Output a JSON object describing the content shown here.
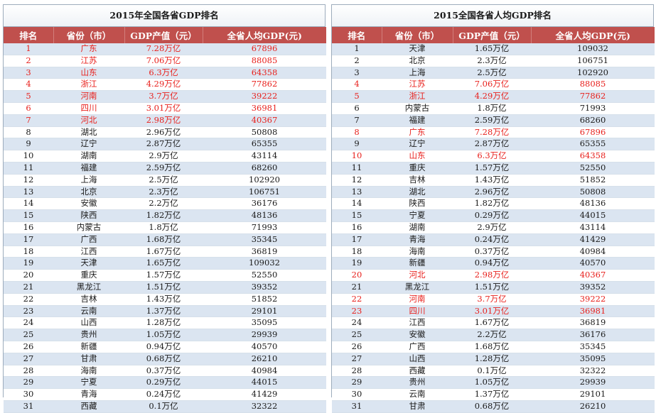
{
  "left": {
    "title": "2015年全国各省GDP排名",
    "headers": [
      "排名",
      "省份（市）",
      "GDP产值（元）",
      "全省人均GDP(元)"
    ],
    "rows": [
      {
        "rank": "1",
        "province": "广东",
        "gdp": "7.28万亿",
        "per_capita": "67896",
        "highlight": true
      },
      {
        "rank": "2",
        "province": "江苏",
        "gdp": "7.06万亿",
        "per_capita": "88085",
        "highlight": true
      },
      {
        "rank": "3",
        "province": "山东",
        "gdp": "6.3万亿",
        "per_capita": "64358",
        "highlight": true
      },
      {
        "rank": "4",
        "province": "浙江",
        "gdp": "4.29万亿",
        "per_capita": "77862",
        "highlight": true
      },
      {
        "rank": "5",
        "province": "河南",
        "gdp": "3.7万亿",
        "per_capita": "39222",
        "highlight": true
      },
      {
        "rank": "6",
        "province": "四川",
        "gdp": "3.01万亿",
        "per_capita": "36981",
        "highlight": true
      },
      {
        "rank": "7",
        "province": "河北",
        "gdp": "2.98万亿",
        "per_capita": "40367",
        "highlight": true
      },
      {
        "rank": "8",
        "province": "湖北",
        "gdp": "2.96万亿",
        "per_capita": "50808",
        "highlight": false
      },
      {
        "rank": "9",
        "province": "辽宁",
        "gdp": "2.87万亿",
        "per_capita": "65355",
        "highlight": false
      },
      {
        "rank": "10",
        "province": "湖南",
        "gdp": "2.9万亿",
        "per_capita": "43114",
        "highlight": false
      },
      {
        "rank": "11",
        "province": "福建",
        "gdp": "2.59万亿",
        "per_capita": "68260",
        "highlight": false
      },
      {
        "rank": "12",
        "province": "上海",
        "gdp": "2.5万亿",
        "per_capita": "102920",
        "highlight": false
      },
      {
        "rank": "13",
        "province": "北京",
        "gdp": "2.3万亿",
        "per_capita": "106751",
        "highlight": false
      },
      {
        "rank": "14",
        "province": "安徽",
        "gdp": "2.2万亿",
        "per_capita": "36176",
        "highlight": false
      },
      {
        "rank": "15",
        "province": "陕西",
        "gdp": "1.82万亿",
        "per_capita": "48136",
        "highlight": false
      },
      {
        "rank": "16",
        "province": "内蒙古",
        "gdp": "1.8万亿",
        "per_capita": "71993",
        "highlight": false
      },
      {
        "rank": "17",
        "province": "广西",
        "gdp": "1.68万亿",
        "per_capita": "35345",
        "highlight": false
      },
      {
        "rank": "18",
        "province": "江西",
        "gdp": "1.67万亿",
        "per_capita": "36819",
        "highlight": false
      },
      {
        "rank": "19",
        "province": "天津",
        "gdp": "1.65万亿",
        "per_capita": "109032",
        "highlight": false
      },
      {
        "rank": "20",
        "province": "重庆",
        "gdp": "1.57万亿",
        "per_capita": "52550",
        "highlight": false
      },
      {
        "rank": "21",
        "province": "黑龙江",
        "gdp": "1.51万亿",
        "per_capita": "39352",
        "highlight": false
      },
      {
        "rank": "22",
        "province": "吉林",
        "gdp": "1.43万亿",
        "per_capita": "51852",
        "highlight": false
      },
      {
        "rank": "23",
        "province": "云南",
        "gdp": "1.37万亿",
        "per_capita": "29101",
        "highlight": false
      },
      {
        "rank": "24",
        "province": "山西",
        "gdp": "1.28万亿",
        "per_capita": "35095",
        "highlight": false
      },
      {
        "rank": "25",
        "province": "贵州",
        "gdp": "1.05万亿",
        "per_capita": "29939",
        "highlight": false
      },
      {
        "rank": "26",
        "province": "新疆",
        "gdp": "0.94万亿",
        "per_capita": "40570",
        "highlight": false
      },
      {
        "rank": "27",
        "province": "甘肃",
        "gdp": "0.68万亿",
        "per_capita": "26210",
        "highlight": false
      },
      {
        "rank": "28",
        "province": "海南",
        "gdp": "0.37万亿",
        "per_capita": "40984",
        "highlight": false
      },
      {
        "rank": "29",
        "province": "宁夏",
        "gdp": "0.29万亿",
        "per_capita": "44015",
        "highlight": false
      },
      {
        "rank": "30",
        "province": "青海",
        "gdp": "0.24万亿",
        "per_capita": "41429",
        "highlight": false
      },
      {
        "rank": "31",
        "province": "西藏",
        "gdp": "0.1万亿",
        "per_capita": "32322",
        "highlight": false
      }
    ]
  },
  "right": {
    "title": "2015全国各省人均GDP排名",
    "headers": [
      "排名",
      "省份（市）",
      "GDP产值（元）",
      "全省人均GDP(元)"
    ],
    "rows": [
      {
        "rank": "1",
        "province": "天津",
        "gdp": "1.65万亿",
        "per_capita": "109032",
        "highlight": false
      },
      {
        "rank": "2",
        "province": "北京",
        "gdp": "2.3万亿",
        "per_capita": "106751",
        "highlight": false
      },
      {
        "rank": "3",
        "province": "上海",
        "gdp": "2.5万亿",
        "per_capita": "102920",
        "highlight": false
      },
      {
        "rank": "4",
        "province": "江苏",
        "gdp": "7.06万亿",
        "per_capita": "88085",
        "highlight": true
      },
      {
        "rank": "5",
        "province": "浙江",
        "gdp": "4.29万亿",
        "per_capita": "77862",
        "highlight": true
      },
      {
        "rank": "6",
        "province": "内蒙古",
        "gdp": "1.8万亿",
        "per_capita": "71993",
        "highlight": false
      },
      {
        "rank": "7",
        "province": "福建",
        "gdp": "2.59万亿",
        "per_capita": "68260",
        "highlight": false
      },
      {
        "rank": "8",
        "province": "广东",
        "gdp": "7.28万亿",
        "per_capita": "67896",
        "highlight": true
      },
      {
        "rank": "9",
        "province": "辽宁",
        "gdp": "2.87万亿",
        "per_capita": "65355",
        "highlight": false
      },
      {
        "rank": "10",
        "province": "山东",
        "gdp": "6.3万亿",
        "per_capita": "64358",
        "highlight": true
      },
      {
        "rank": "11",
        "province": "重庆",
        "gdp": "1.57万亿",
        "per_capita": "52550",
        "highlight": false
      },
      {
        "rank": "12",
        "province": "吉林",
        "gdp": "1.43万亿",
        "per_capita": "51852",
        "highlight": false
      },
      {
        "rank": "13",
        "province": "湖北",
        "gdp": "2.96万亿",
        "per_capita": "50808",
        "highlight": false
      },
      {
        "rank": "14",
        "province": "陕西",
        "gdp": "1.82万亿",
        "per_capita": "48136",
        "highlight": false
      },
      {
        "rank": "15",
        "province": "宁夏",
        "gdp": "0.29万亿",
        "per_capita": "44015",
        "highlight": false
      },
      {
        "rank": "16",
        "province": "湖南",
        "gdp": "2.9万亿",
        "per_capita": "43114",
        "highlight": false
      },
      {
        "rank": "17",
        "province": "青海",
        "gdp": "0.24万亿",
        "per_capita": "41429",
        "highlight": false
      },
      {
        "rank": "18",
        "province": "海南",
        "gdp": "0.37万亿",
        "per_capita": "40984",
        "highlight": false
      },
      {
        "rank": "19",
        "province": "新疆",
        "gdp": "0.94万亿",
        "per_capita": "40570",
        "highlight": false
      },
      {
        "rank": "20",
        "province": "河北",
        "gdp": "2.98万亿",
        "per_capita": "40367",
        "highlight": true
      },
      {
        "rank": "21",
        "province": "黑龙江",
        "gdp": "1.51万亿",
        "per_capita": "39352",
        "highlight": false
      },
      {
        "rank": "22",
        "province": "河南",
        "gdp": "3.7万亿",
        "per_capita": "39222",
        "highlight": true
      },
      {
        "rank": "23",
        "province": "四川",
        "gdp": "3.01万亿",
        "per_capita": "36981",
        "highlight": true
      },
      {
        "rank": "24",
        "province": "江西",
        "gdp": "1.67万亿",
        "per_capita": "36819",
        "highlight": false
      },
      {
        "rank": "25",
        "province": "安徽",
        "gdp": "2.2万亿",
        "per_capita": "36176",
        "highlight": false
      },
      {
        "rank": "26",
        "province": "广西",
        "gdp": "1.68万亿",
        "per_capita": "35345",
        "highlight": false
      },
      {
        "rank": "27",
        "province": "山西",
        "gdp": "1.28万亿",
        "per_capita": "35095",
        "highlight": false
      },
      {
        "rank": "28",
        "province": "西藏",
        "gdp": "0.1万亿",
        "per_capita": "32322",
        "highlight": false
      },
      {
        "rank": "29",
        "province": "贵州",
        "gdp": "1.05万亿",
        "per_capita": "29939",
        "highlight": false
      },
      {
        "rank": "30",
        "province": "云南",
        "gdp": "1.37万亿",
        "per_capita": "29101",
        "highlight": false
      },
      {
        "rank": "31",
        "province": "甘肃",
        "gdp": "0.68万亿",
        "per_capita": "26210",
        "highlight": false
      }
    ]
  },
  "colors": {
    "header_bg": "#c0504d",
    "stripe_bg": "#dbe5f1",
    "highlight_text": "#e8201c"
  }
}
